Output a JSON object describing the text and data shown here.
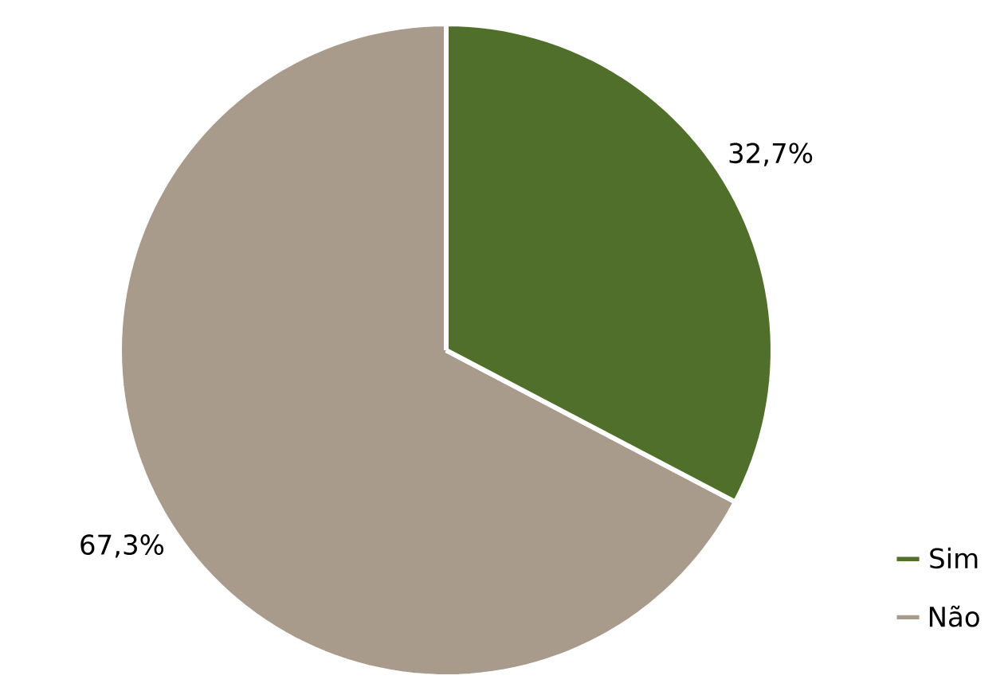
{
  "chart_data": {
    "type": "pie",
    "categories": [
      "Sim",
      "Não"
    ],
    "values": [
      32.7,
      67.3
    ],
    "colors": [
      "#4f6f2a",
      "#a99b8c"
    ],
    "value_labels": [
      "32,7%",
      "67,3%"
    ],
    "legend": "bottom right"
  }
}
